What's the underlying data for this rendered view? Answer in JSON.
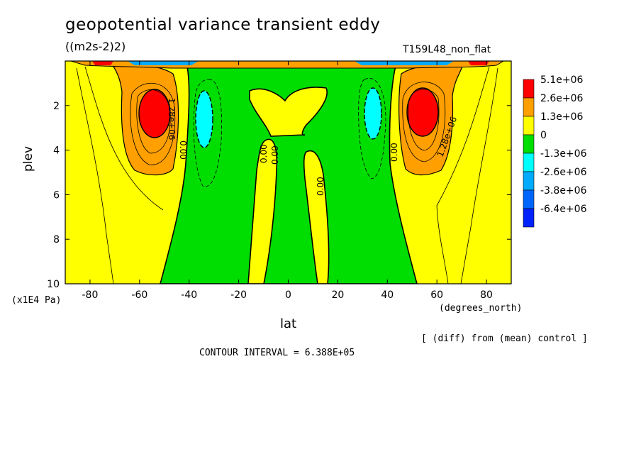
{
  "header": {
    "title": "geopotential variance transient eddy",
    "units": "((m2s-2)2)",
    "run_name": "T159L48_non_flat"
  },
  "footer": {
    "y_units": "(x1E4 Pa)",
    "x_units": "(degrees_north)",
    "diff_note": "[ (diff) from (mean) control ]",
    "contour_interval": "CONTOUR INTERVAL = 6.388E+05"
  },
  "chart_data": {
    "type": "contour",
    "title": "geopotential variance transient eddy",
    "xlabel": "lat",
    "ylabel": "plev",
    "xlim": [
      -90,
      90
    ],
    "ylim": [
      10,
      0
    ],
    "x_ticks": [
      -80,
      -60,
      -40,
      -20,
      0,
      20,
      40,
      60,
      80
    ],
    "y_ticks": [
      2,
      4,
      6,
      8,
      10
    ],
    "grid": false,
    "legend_position": "right",
    "contour_interval": 638800,
    "legend": [
      {
        "label": "5.1e+06",
        "color": "#ff0000"
      },
      {
        "label": "2.6e+06",
        "color": "#ff9f00"
      },
      {
        "label": "1.3e+06",
        "color": "#ffff00"
      },
      {
        "label": "0",
        "color": "#00dd00"
      },
      {
        "label": "-1.3e+06",
        "color": "#00ffff"
      },
      {
        "label": "-2.6e+06",
        "color": "#00aaff"
      },
      {
        "label": "-3.8e+06",
        "color": "#0066ff"
      },
      {
        "label": "-6.4e+06",
        "color": "#0022ff"
      }
    ],
    "contour_labels": [
      "1.28e+06",
      "0.00",
      "0.00",
      "0.00",
      "0.00",
      "0.00",
      "1.28e+06"
    ],
    "features": [
      {
        "kind": "max",
        "lat": -54,
        "plev": 2.5,
        "level": 5100000
      },
      {
        "kind": "max",
        "lat": 54,
        "plev": 2.4,
        "level": 5100000
      },
      {
        "kind": "min",
        "lat": -36,
        "plev": 2.8,
        "level": -1300000
      },
      {
        "kind": "min",
        "lat": 34,
        "plev": 2.6,
        "level": -1300000
      }
    ]
  }
}
